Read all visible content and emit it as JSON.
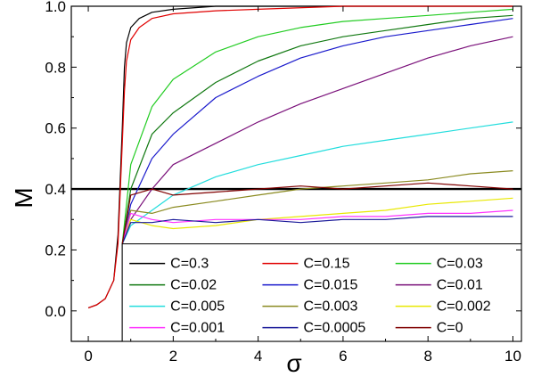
{
  "chart_data": {
    "type": "line",
    "title": "",
    "xlabel": "σ",
    "ylabel": "M",
    "xlim": [
      -0.4,
      10.2
    ],
    "ylim": [
      -0.1,
      1.0
    ],
    "xticks": [
      0,
      2,
      4,
      6,
      8,
      10
    ],
    "yticks": [
      0.0,
      0.2,
      0.4,
      0.6,
      0.8,
      1.0
    ],
    "xtick_labels": [
      "0",
      "2",
      "4",
      "6",
      "8",
      "10"
    ],
    "ytick_labels": [
      "0.0",
      "0.2",
      "0.4",
      "0.6",
      "0.8",
      "1.0"
    ],
    "grid": false,
    "legend_position": "lower-right",
    "reference_lines": [
      {
        "orientation": "horizontal",
        "value": 0.4,
        "color": "#000000"
      },
      {
        "orientation": "vertical",
        "value": 0.8,
        "color": "#000000"
      }
    ],
    "series": [
      {
        "name": "C=0.3",
        "color": "#000000",
        "x": [
          0,
          0.2,
          0.4,
          0.6,
          0.7,
          0.8,
          0.85,
          0.9,
          1.0,
          1.2,
          1.5,
          2,
          3,
          4,
          6,
          8,
          10
        ],
        "y": [
          0.01,
          0.02,
          0.04,
          0.1,
          0.25,
          0.6,
          0.8,
          0.88,
          0.93,
          0.96,
          0.98,
          0.99,
          1.0,
          1.0,
          1.0,
          1.0,
          1.0
        ]
      },
      {
        "name": "C=0.15",
        "color": "#e00000",
        "x": [
          0,
          0.2,
          0.4,
          0.6,
          0.7,
          0.8,
          0.85,
          0.9,
          1.0,
          1.2,
          1.5,
          2,
          3,
          4,
          6,
          8,
          10
        ],
        "y": [
          0.01,
          0.02,
          0.04,
          0.1,
          0.22,
          0.55,
          0.72,
          0.82,
          0.89,
          0.93,
          0.96,
          0.975,
          0.985,
          0.99,
          1.0,
          1.0,
          1.0
        ]
      },
      {
        "name": "C=0.03",
        "color": "#22cc22",
        "x": [
          0.8,
          1,
          1.5,
          2,
          3,
          4,
          5,
          6,
          7,
          8,
          9,
          10
        ],
        "y": [
          0.22,
          0.48,
          0.67,
          0.76,
          0.85,
          0.9,
          0.93,
          0.95,
          0.96,
          0.97,
          0.98,
          0.99
        ]
      },
      {
        "name": "C=0.02",
        "color": "#107810",
        "x": [
          0.8,
          1,
          1.5,
          2,
          3,
          4,
          5,
          6,
          7,
          8,
          9,
          10
        ],
        "y": [
          0.22,
          0.4,
          0.58,
          0.65,
          0.75,
          0.82,
          0.87,
          0.9,
          0.92,
          0.94,
          0.96,
          0.97
        ]
      },
      {
        "name": "C=0.015",
        "color": "#1a1acc",
        "x": [
          0.8,
          1,
          1.5,
          2,
          3,
          4,
          5,
          6,
          7,
          8,
          9,
          10
        ],
        "y": [
          0.22,
          0.35,
          0.5,
          0.58,
          0.7,
          0.77,
          0.83,
          0.87,
          0.9,
          0.92,
          0.94,
          0.96
        ]
      },
      {
        "name": "C=0.01",
        "color": "#7a107a",
        "x": [
          0.8,
          1,
          1.5,
          2,
          3,
          4,
          5,
          6,
          7,
          8,
          9,
          10
        ],
        "y": [
          0.22,
          0.3,
          0.4,
          0.48,
          0.55,
          0.62,
          0.68,
          0.73,
          0.78,
          0.83,
          0.87,
          0.9
        ]
      },
      {
        "name": "C=0.005",
        "color": "#22dddd",
        "x": [
          0.8,
          1,
          1.5,
          2,
          3,
          4,
          5,
          6,
          7,
          8,
          9,
          10
        ],
        "y": [
          0.22,
          0.28,
          0.33,
          0.38,
          0.44,
          0.48,
          0.51,
          0.54,
          0.56,
          0.58,
          0.6,
          0.62
        ]
      },
      {
        "name": "C=0.003",
        "color": "#8a8a20",
        "x": [
          0.8,
          1,
          1.5,
          2,
          3,
          4,
          5,
          6,
          7,
          8,
          9,
          10
        ],
        "y": [
          0.22,
          0.33,
          0.32,
          0.34,
          0.36,
          0.38,
          0.4,
          0.41,
          0.42,
          0.43,
          0.45,
          0.46
        ]
      },
      {
        "name": "C=0.002",
        "color": "#e8e800",
        "x": [
          0.8,
          1,
          1.5,
          2,
          3,
          4,
          5,
          6,
          7,
          8,
          9,
          10
        ],
        "y": [
          0.22,
          0.3,
          0.28,
          0.27,
          0.28,
          0.3,
          0.31,
          0.32,
          0.33,
          0.35,
          0.36,
          0.37
        ]
      },
      {
        "name": "C=0.001",
        "color": "#ff33ff",
        "x": [
          0.8,
          1,
          1.5,
          2,
          3,
          4,
          5,
          6,
          7,
          8,
          9,
          10
        ],
        "y": [
          0.22,
          0.32,
          0.3,
          0.29,
          0.3,
          0.3,
          0.3,
          0.31,
          0.31,
          0.32,
          0.32,
          0.33
        ]
      },
      {
        "name": "C=0.0005",
        "color": "#1a1a99",
        "x": [
          0.8,
          1,
          1.5,
          2,
          3,
          4,
          5,
          6,
          7,
          8,
          9,
          10
        ],
        "y": [
          0.22,
          0.29,
          0.29,
          0.3,
          0.29,
          0.3,
          0.29,
          0.3,
          0.3,
          0.31,
          0.31,
          0.31
        ]
      },
      {
        "name": "C=0",
        "color": "#800000",
        "x": [
          0.8,
          1,
          1.5,
          2,
          3,
          4,
          5,
          6,
          7,
          8,
          9,
          10
        ],
        "y": [
          0.22,
          0.38,
          0.4,
          0.38,
          0.39,
          0.4,
          0.41,
          0.4,
          0.41,
          0.42,
          0.41,
          0.4
        ]
      }
    ]
  }
}
